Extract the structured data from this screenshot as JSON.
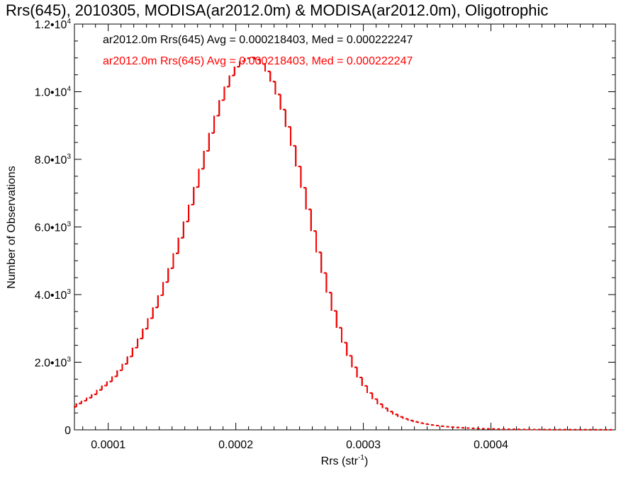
{
  "chart_data": {
    "type": "histogram",
    "title": "Rrs(645), 2010305, MODISA(ar2012.0m) & MODISA(ar2012.0m), Oligotrophic",
    "xlabel": "Rrs (str",
    "xlabel_sup": "-1",
    "xlabel_close": ")",
    "ylabel": "Number of Observations",
    "xlim": [
      7.35e-05,
      0.0004975
    ],
    "ylim": [
      0,
      12000
    ],
    "x_ticks": [
      {
        "value": 0.0001,
        "label": "0.0001"
      },
      {
        "value": 0.0002,
        "label": "0.0002"
      },
      {
        "value": 0.0003,
        "label": "0.0003"
      },
      {
        "value": 0.0004,
        "label": "0.0004"
      }
    ],
    "y_ticks": [
      {
        "value": 0,
        "mant": "0",
        "exp": ""
      },
      {
        "value": 2000,
        "mant": "2.0•10",
        "exp": "3"
      },
      {
        "value": 4000,
        "mant": "4.0•10",
        "exp": "3"
      },
      {
        "value": 6000,
        "mant": "6.0•10",
        "exp": "3"
      },
      {
        "value": 8000,
        "mant": "8.0•10",
        "exp": "3"
      },
      {
        "value": 10000,
        "mant": "1.0•10",
        "exp": "4"
      },
      {
        "value": 12000,
        "mant": "1.2•10",
        "exp": "4"
      }
    ],
    "annotations": [
      {
        "text": "ar2012.0m Rrs(645) Avg = 0.000218403, Med = 0.000222247",
        "color": "#000000"
      },
      {
        "text": "ar2012.0m Rrs(645) Avg = 0.000218403, Med = 0.000222247",
        "color": "#ff0000"
      }
    ],
    "grid": false,
    "series": [
      {
        "color": "#000000",
        "bin_width": 2e-06,
        "x": [
          7.4e-05,
          7.8e-05,
          8.2e-05,
          8.6e-05,
          9e-05,
          9.4e-05,
          9.8e-05,
          0.000102,
          0.000106,
          0.00011,
          0.000114,
          0.000118,
          0.000122,
          0.000126,
          0.00013,
          0.000134,
          0.000138,
          0.000142,
          0.000146,
          0.00015,
          0.000154,
          0.000158,
          0.000162,
          0.000166,
          0.00017,
          0.000174,
          0.000178,
          0.000182,
          0.000186,
          0.00019,
          0.000194,
          0.000198,
          0.000202,
          0.000206,
          0.00021,
          0.000214,
          0.000218,
          0.000222,
          0.000226,
          0.00023,
          0.000234,
          0.000238,
          0.000242,
          0.000246,
          0.00025,
          0.000254,
          0.000258,
          0.000262,
          0.000266,
          0.00027,
          0.000274,
          0.000278,
          0.000282,
          0.000286,
          0.00029,
          0.000294,
          0.000298,
          0.000302,
          0.000306,
          0.00031,
          0.000314,
          0.000318,
          0.000322,
          0.000326,
          0.00033,
          0.000334,
          0.000338,
          0.000342,
          0.000346,
          0.00035,
          0.000354,
          0.000358,
          0.000362,
          0.000366,
          0.00037,
          0.000374,
          0.000378,
          0.000382,
          0.000386,
          0.00039,
          0.000394,
          0.000398,
          0.000402,
          0.000406,
          0.00041,
          0.000414,
          0.000418,
          0.000422,
          0.000426,
          0.00043,
          0.000434,
          0.000438,
          0.000442,
          0.000446,
          0.00045,
          0.000454,
          0.000458,
          0.000462,
          0.000466,
          0.00047,
          0.000474,
          0.000478,
          0.000482,
          0.000486,
          0.00049,
          0.000494
        ],
        "values": [
          680,
          780,
          860,
          950,
          1050,
          1180,
          1310,
          1430,
          1580,
          1760,
          1950,
          2170,
          2430,
          2700,
          2990,
          3300,
          3620,
          3980,
          4370,
          4780,
          5220,
          5680,
          6160,
          6660,
          7180,
          7720,
          8250,
          8780,
          9290,
          9750,
          10150,
          10480,
          10740,
          10900,
          10990,
          11010,
          10950,
          10820,
          10600,
          10300,
          9920,
          9470,
          8960,
          8400,
          7790,
          7160,
          6520,
          5880,
          5250,
          4640,
          4060,
          3520,
          3020,
          2580,
          2190,
          1850,
          1550,
          1300,
          1090,
          910,
          760,
          640,
          540,
          455,
          385,
          325,
          275,
          235,
          200,
          170,
          145,
          125,
          108,
          93,
          80,
          69,
          60,
          52,
          45,
          39,
          34,
          30,
          26,
          23,
          20,
          18,
          16,
          14,
          12,
          11,
          10,
          9,
          8,
          7,
          6,
          6,
          5,
          5,
          4,
          4,
          4,
          3,
          3,
          3,
          2,
          2
        ]
      },
      {
        "color": "#ff0000",
        "bin_width": 2e-06,
        "x": [
          7.4e-05,
          7.8e-05,
          8.2e-05,
          8.6e-05,
          9e-05,
          9.4e-05,
          9.8e-05,
          0.000102,
          0.000106,
          0.00011,
          0.000114,
          0.000118,
          0.000122,
          0.000126,
          0.00013,
          0.000134,
          0.000138,
          0.000142,
          0.000146,
          0.00015,
          0.000154,
          0.000158,
          0.000162,
          0.000166,
          0.00017,
          0.000174,
          0.000178,
          0.000182,
          0.000186,
          0.00019,
          0.000194,
          0.000198,
          0.000202,
          0.000206,
          0.00021,
          0.000214,
          0.000218,
          0.000222,
          0.000226,
          0.00023,
          0.000234,
          0.000238,
          0.000242,
          0.000246,
          0.00025,
          0.000254,
          0.000258,
          0.000262,
          0.000266,
          0.00027,
          0.000274,
          0.000278,
          0.000282,
          0.000286,
          0.00029,
          0.000294,
          0.000298,
          0.000302,
          0.000306,
          0.00031,
          0.000314,
          0.000318,
          0.000322,
          0.000326,
          0.00033,
          0.000334,
          0.000338,
          0.000342,
          0.000346,
          0.00035,
          0.000354,
          0.000358,
          0.000362,
          0.000366,
          0.00037,
          0.000374,
          0.000378,
          0.000382,
          0.000386,
          0.00039,
          0.000394,
          0.000398,
          0.000402,
          0.000406,
          0.00041,
          0.000414,
          0.000418,
          0.000422,
          0.000426,
          0.00043,
          0.000434,
          0.000438,
          0.000442,
          0.000446,
          0.00045,
          0.000454,
          0.000458,
          0.000462,
          0.000466,
          0.00047,
          0.000474,
          0.000478,
          0.000482,
          0.000486,
          0.00049,
          0.000494
        ],
        "values": [
          680,
          780,
          860,
          950,
          1050,
          1180,
          1310,
          1430,
          1580,
          1760,
          1950,
          2170,
          2430,
          2700,
          2990,
          3300,
          3620,
          3980,
          4370,
          4780,
          5220,
          5680,
          6160,
          6660,
          7180,
          7720,
          8250,
          8780,
          9290,
          9750,
          10150,
          10480,
          10740,
          10900,
          10990,
          11010,
          10950,
          10820,
          10600,
          10300,
          9920,
          9470,
          8960,
          8400,
          7790,
          7160,
          6520,
          5880,
          5250,
          4640,
          4060,
          3520,
          3020,
          2580,
          2190,
          1850,
          1550,
          1300,
          1090,
          910,
          760,
          640,
          540,
          455,
          385,
          325,
          275,
          235,
          200,
          170,
          145,
          125,
          108,
          93,
          80,
          69,
          60,
          52,
          45,
          39,
          34,
          30,
          26,
          23,
          20,
          18,
          16,
          14,
          12,
          11,
          10,
          9,
          8,
          7,
          6,
          6,
          5,
          5,
          4,
          4,
          4,
          3,
          3,
          3,
          2,
          2
        ]
      }
    ]
  }
}
